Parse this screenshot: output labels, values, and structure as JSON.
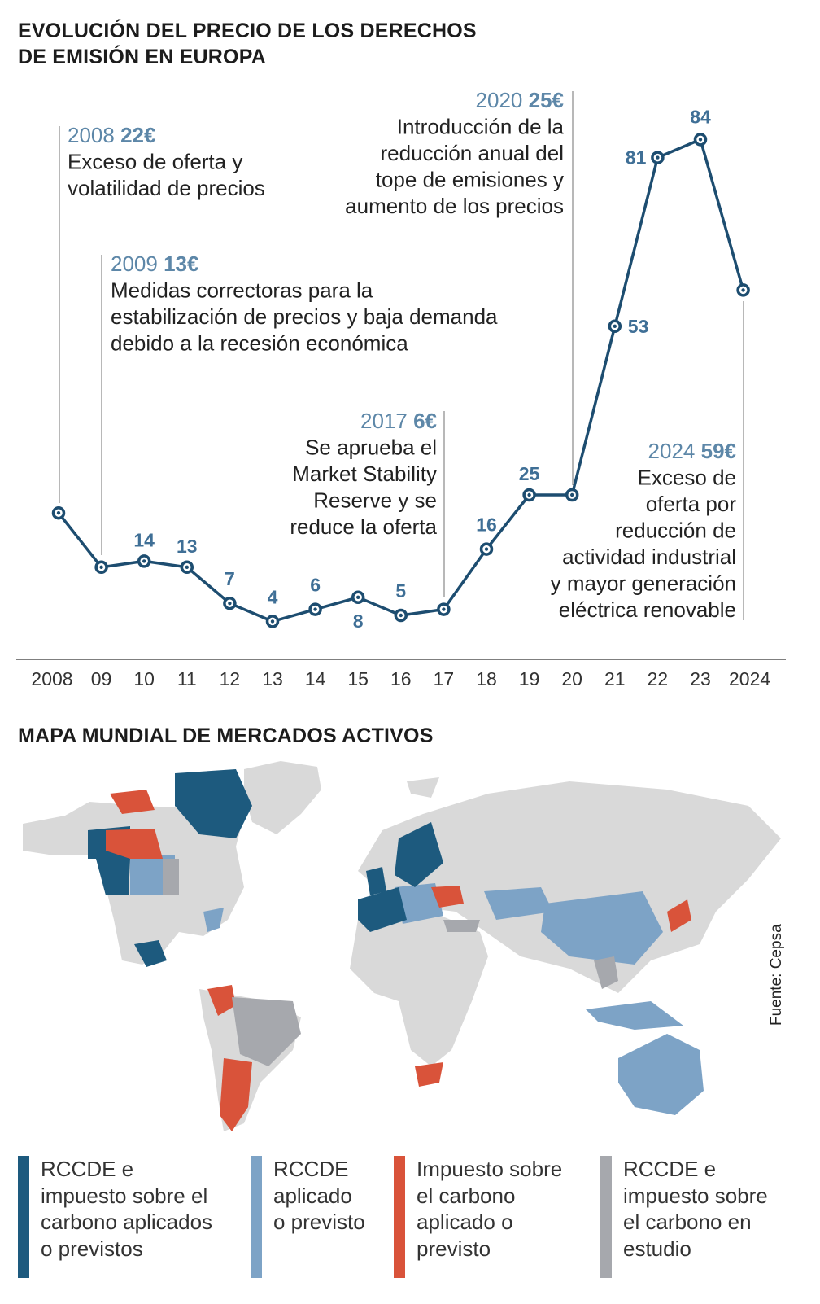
{
  "chart_title": "EVOLUCIÓN DEL PRECIO DE LOS DERECHOS DE EMISIÓN EN EUROPA",
  "map_title": "MAPA MUNDIAL DE MERCADOS ACTIVOS",
  "source": "Fuente: Cepsa",
  "chart_data": {
    "type": "line",
    "title": "EVOLUCIÓN DEL PRECIO DE LOS DERECHOS DE EMISIÓN EN EUROPA",
    "x": [
      "2008",
      "09",
      "10",
      "11",
      "12",
      "13",
      "14",
      "15",
      "16",
      "17",
      "18",
      "19",
      "20",
      "21",
      "22",
      "23",
      "2024"
    ],
    "values": [
      22,
      13,
      14,
      13,
      7,
      4,
      6,
      8,
      5,
      6,
      16,
      25,
      25,
      53,
      81,
      84,
      59
    ],
    "value_labels": [
      "",
      "",
      "14",
      "13",
      "7",
      "4",
      "6",
      "8",
      "5",
      "",
      "16",
      "25",
      "",
      "53",
      "81",
      "84",
      ""
    ],
    "ylim": [
      0,
      90
    ],
    "grid": false,
    "line_color": "#1d4d70",
    "annotations": [
      {
        "year": "2008",
        "price": "22€",
        "lines": [
          "Exceso de oferta y",
          "volatilidad de precios"
        ]
      },
      {
        "year": "2009",
        "price": "13€",
        "lines": [
          "Medidas correctoras para la",
          "estabilización de precios y baja demanda",
          "debido a la recesión económica"
        ]
      },
      {
        "year": "2017",
        "price": "6€",
        "lines": [
          "Se aprueba el",
          "Market Stability",
          "Reserve y se",
          "reduce la oferta"
        ]
      },
      {
        "year": "2020",
        "price": "25€",
        "lines": [
          "Introducción de la",
          "reducción anual del",
          "tope de emisiones y",
          "aumento de los precios"
        ]
      },
      {
        "year": "2024",
        "price": "59€",
        "lines": [
          "Exceso de",
          "oferta por",
          "reducción de",
          "actividad industrial",
          "y mayor generación",
          "eléctrica renovable"
        ]
      }
    ]
  },
  "map": {
    "colors": {
      "rccde_e_impuesto": "#1d5a7e",
      "rccde": "#7da3c6",
      "impuesto": "#d9533a",
      "en_estudio": "#a6a8ad",
      "sin_datos": "#d9d9d9"
    }
  },
  "legend": [
    {
      "text": "RCCDE e\nimpuesto sobre el\ncarbono aplicados\no previstos",
      "color": "#1d5a7e"
    },
    {
      "text": "RCCDE\naplicado\no previsto",
      "color": "#7da3c6"
    },
    {
      "text": "Impuesto sobre\nel carbono\naplicado o\nprevisto",
      "color": "#d9533a"
    },
    {
      "text": "RCCDE e\nimpuesto sobre\nel carbono en\nestudio",
      "color": "#a6a8ad"
    }
  ]
}
